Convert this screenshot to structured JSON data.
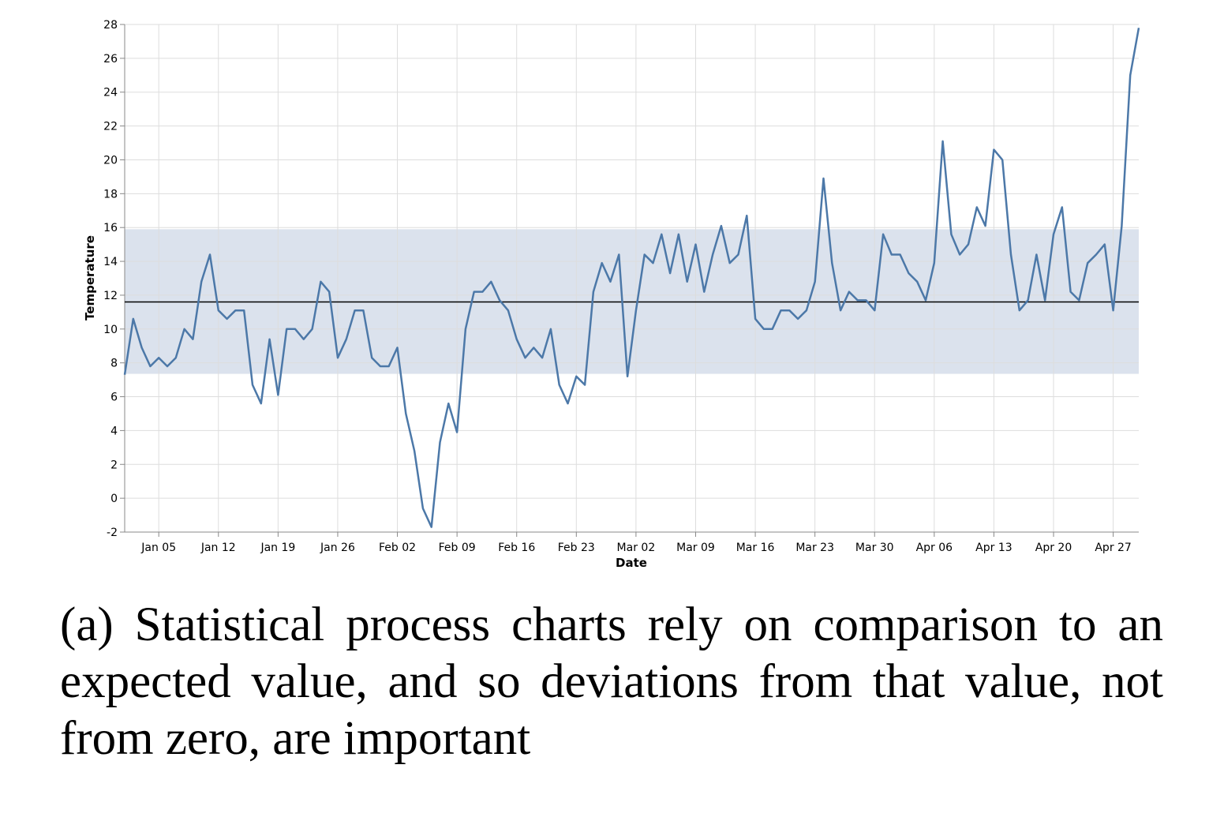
{
  "chart_data": {
    "type": "line",
    "x_label": "Date",
    "y_label": "Temperature",
    "categories": [
      null,
      null,
      null,
      null,
      "Jan 05",
      null,
      null,
      null,
      null,
      null,
      null,
      "Jan 12",
      null,
      null,
      null,
      null,
      null,
      null,
      "Jan 19",
      null,
      null,
      null,
      null,
      null,
      null,
      "Jan 26",
      null,
      null,
      null,
      null,
      null,
      null,
      "Feb 02",
      null,
      null,
      null,
      null,
      null,
      null,
      "Feb 09",
      null,
      null,
      null,
      null,
      null,
      null,
      "Feb 16",
      null,
      null,
      null,
      null,
      null,
      null,
      "Feb 23",
      null,
      null,
      null,
      null,
      null,
      null,
      "Mar 02",
      null,
      null,
      null,
      null,
      null,
      null,
      "Mar 09",
      null,
      null,
      null,
      null,
      null,
      null,
      "Mar 16",
      null,
      null,
      null,
      null,
      null,
      null,
      "Mar 23",
      null,
      null,
      null,
      null,
      null,
      null,
      "Mar 30",
      null,
      null,
      null,
      null,
      null,
      null,
      "Apr 06",
      null,
      null,
      null,
      null,
      null,
      null,
      "Apr 13",
      null,
      null,
      null,
      null,
      null,
      null,
      "Apr 20",
      null,
      null,
      null,
      null,
      null,
      null,
      "Apr 27",
      null,
      null,
      null
    ],
    "values": [
      7.3,
      10.6,
      8.9,
      7.8,
      8.3,
      7.8,
      8.3,
      10.0,
      9.4,
      12.8,
      14.4,
      11.1,
      10.6,
      11.1,
      11.1,
      6.7,
      5.6,
      9.4,
      6.1,
      10.0,
      10.0,
      9.4,
      10.0,
      12.8,
      12.2,
      8.3,
      9.4,
      11.1,
      11.1,
      8.3,
      7.8,
      7.8,
      8.9,
      5.0,
      2.8,
      -0.6,
      -1.7,
      3.3,
      5.6,
      3.9,
      10.0,
      12.2,
      12.2,
      12.8,
      11.7,
      11.1,
      9.4,
      8.3,
      8.9,
      8.3,
      10.0,
      6.7,
      5.6,
      7.2,
      6.7,
      12.2,
      13.9,
      12.8,
      14.4,
      7.2,
      11.1,
      14.4,
      13.9,
      15.6,
      13.3,
      15.6,
      12.8,
      15.0,
      12.2,
      14.4,
      16.1,
      13.9,
      14.4,
      16.7,
      10.6,
      10.0,
      10.0,
      11.1,
      11.1,
      10.6,
      11.1,
      12.8,
      18.9,
      13.9,
      11.1,
      12.2,
      11.7,
      11.7,
      11.1,
      15.6,
      14.4,
      14.4,
      13.3,
      12.8,
      11.7,
      13.9,
      21.1,
      15.6,
      14.4,
      15.0,
      17.2,
      16.1,
      20.6,
      20.0,
      14.4,
      11.1,
      11.7,
      14.4,
      11.7,
      15.6,
      17.2,
      12.2,
      11.7,
      13.9,
      14.4,
      15.0,
      11.1,
      16.1,
      25.0,
      27.8
    ],
    "color": "#4c78a8",
    "mean": 11.6,
    "control_band": {
      "low": 7.35,
      "high": 15.9,
      "color": "#dbe2ed"
    },
    "ylim": [
      -2,
      28
    ],
    "yticks": [
      -2,
      0,
      2,
      4,
      6,
      8,
      10,
      12,
      14,
      16,
      18,
      20,
      22,
      24,
      26,
      28
    ],
    "grid": true
  },
  "caption": "(a) Statistical process charts rely on comparison to an expected value, and so deviations from that value, not from zero, are important"
}
